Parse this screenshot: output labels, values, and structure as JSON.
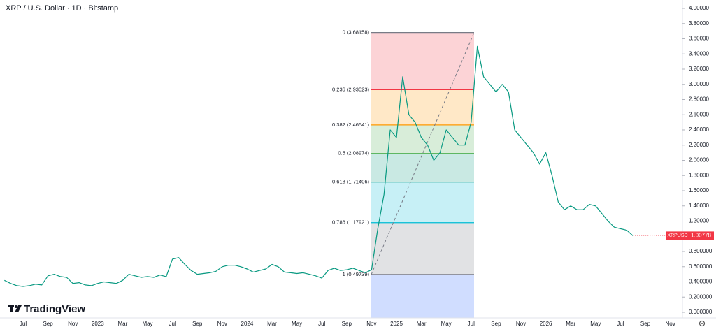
{
  "branding": "TradingView",
  "chart_data": {
    "type": "line",
    "title": "XRP / U.S. Dollar · 1D · Bitstamp",
    "categories": [
      null,
      null,
      null,
      "Jul",
      null,
      null,
      null,
      "Sep",
      null,
      null,
      null,
      "Nov",
      null,
      null,
      null,
      "2023",
      null,
      null,
      null,
      "Mar",
      null,
      null,
      null,
      "May",
      null,
      null,
      null,
      "Jul",
      null,
      null,
      null,
      "Sep",
      null,
      null,
      null,
      "Nov",
      null,
      null,
      null,
      "2024",
      null,
      null,
      null,
      "Mar",
      null,
      null,
      null,
      "May",
      null,
      null,
      null,
      "Jul",
      null,
      null,
      null,
      "Sep",
      null,
      null,
      null,
      "Nov",
      null,
      null,
      null,
      "2025",
      null,
      null,
      null,
      "Mar",
      null,
      null,
      null,
      "May",
      null,
      null,
      null,
      "Jul",
      null,
      null,
      null,
      "Sep",
      null,
      null,
      null,
      "Nov",
      null,
      null,
      null,
      "2026",
      null,
      null,
      null,
      "Mar",
      null,
      null,
      null,
      "May",
      null,
      null,
      null,
      "Jul",
      null,
      null,
      null,
      "Sep",
      null,
      null,
      null,
      "Nov"
    ],
    "series": [
      {
        "name": "XRPUSD",
        "color": "#089981",
        "values": [
          0.42,
          0.38,
          0.35,
          0.34,
          0.35,
          0.37,
          0.36,
          0.48,
          0.5,
          0.47,
          0.46,
          0.38,
          0.39,
          0.36,
          0.35,
          0.38,
          0.4,
          0.39,
          0.38,
          0.42,
          0.5,
          0.48,
          0.46,
          0.47,
          0.46,
          0.49,
          0.47,
          0.7,
          0.72,
          0.63,
          0.55,
          0.5,
          0.51,
          0.52,
          0.54,
          0.6,
          0.62,
          0.62,
          0.6,
          0.57,
          0.53,
          0.55,
          0.57,
          0.63,
          0.6,
          0.53,
          0.52,
          0.51,
          0.52,
          0.5,
          0.48,
          0.45,
          0.55,
          0.58,
          0.55,
          0.56,
          0.58,
          0.55,
          0.52,
          0.56,
          1.1,
          1.55,
          2.4,
          2.3,
          3.1,
          2.6,
          2.5,
          2.3,
          2.2,
          2.0,
          2.1,
          2.4,
          2.3,
          2.2,
          2.2,
          2.5,
          3.5,
          3.1,
          3.0,
          2.9,
          3.0,
          2.9,
          2.4,
          2.3,
          2.2,
          2.1,
          1.95,
          2.1,
          1.8,
          1.45,
          1.35,
          1.4,
          1.35,
          1.35,
          1.42,
          1.4,
          1.3,
          1.2,
          1.12,
          1.1,
          1.08,
          1.00778,
          null,
          null,
          null,
          null,
          null,
          null
        ]
      }
    ],
    "ylim": [
      0,
      4
    ],
    "yticks": [
      {
        "value": 0,
        "label": "0.000000"
      },
      {
        "value": 0.2,
        "label": "0.200000"
      },
      {
        "value": 0.4,
        "label": "0.400000"
      },
      {
        "value": 0.6,
        "label": "0.600000"
      },
      {
        "value": 0.8,
        "label": "0.800000"
      },
      {
        "value": 1,
        "label": "1.00000"
      },
      {
        "value": 1.2,
        "label": "1.20000"
      },
      {
        "value": 1.4,
        "label": "1.40000"
      },
      {
        "value": 1.6,
        "label": "1.60000"
      },
      {
        "value": 1.8,
        "label": "1.80000"
      },
      {
        "value": 2,
        "label": "2.00000"
      },
      {
        "value": 2.2,
        "label": "2.20000"
      },
      {
        "value": 2.4,
        "label": "2.40000"
      },
      {
        "value": 2.6,
        "label": "2.60000"
      },
      {
        "value": 2.8,
        "label": "2.80000"
      },
      {
        "value": 3,
        "label": "3.00000"
      },
      {
        "value": 3.2,
        "label": "3.20000"
      },
      {
        "value": 3.4,
        "label": "3.40000"
      },
      {
        "value": 3.6,
        "label": "3.60000"
      },
      {
        "value": 3.8,
        "label": "3.80000"
      },
      {
        "value": 4,
        "label": "4.00000"
      }
    ],
    "grid": false,
    "fib_levels": [
      {
        "label": "0 (3.68158)",
        "value": 3.68158,
        "color": "#787b86"
      },
      {
        "label": "0.236 (2.93023)",
        "value": 2.93023,
        "color": "#f23645"
      },
      {
        "label": "0.382 (2.46541)",
        "value": 2.46541,
        "color": "#ff9800"
      },
      {
        "label": "0.5 (2.08974)",
        "value": 2.08974,
        "color": "#4caf50"
      },
      {
        "label": "0.618 (1.71406)",
        "value": 1.71406,
        "color": "#089981"
      },
      {
        "label": "0.786 (1.17921)",
        "value": 1.17921,
        "color": "#00bcd4"
      },
      {
        "label": "1 (0.49739)",
        "value": 0.49739,
        "color": "#787b86"
      }
    ],
    "last_price_color": "#f23645"
  }
}
